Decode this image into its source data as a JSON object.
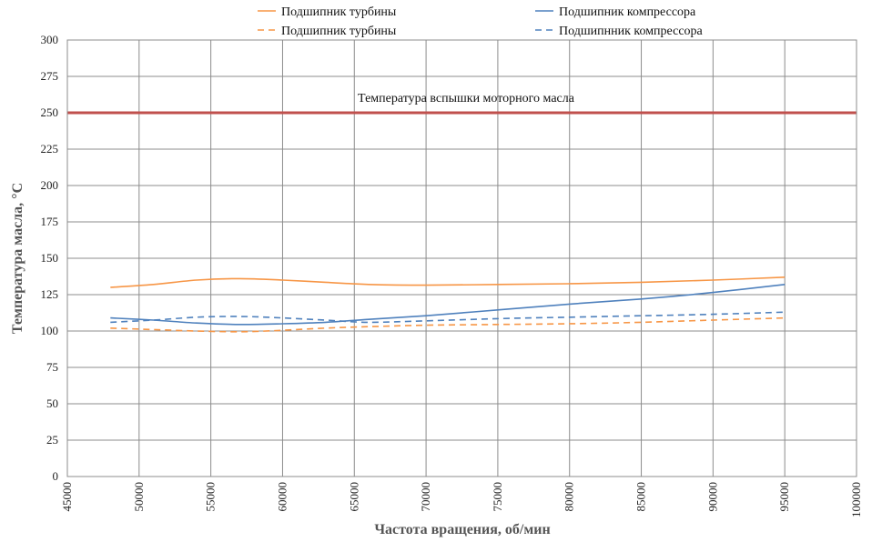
{
  "chart_data": {
    "type": "line",
    "title": "",
    "xlabel": "Частота вращения,  об/мин",
    "ylabel": "Температура  масла, °С",
    "xlim": [
      45000,
      100000
    ],
    "ylim": [
      0,
      300
    ],
    "x_ticks": [
      45000,
      50000,
      55000,
      60000,
      65000,
      70000,
      75000,
      80000,
      85000,
      90000,
      95000,
      100000
    ],
    "x_tick_labels": [
      "45000",
      "50000",
      "55000",
      "60000",
      "65000",
      "70000",
      "75000",
      "80000",
      "85000",
      "90000",
      "95000",
      "100000"
    ],
    "y_ticks": [
      0,
      25,
      50,
      75,
      100,
      125,
      150,
      175,
      200,
      225,
      250,
      275,
      300
    ],
    "y_tick_labels": [
      "0",
      "25",
      "50",
      "75",
      "100",
      "125",
      "150",
      "175",
      "200",
      "225",
      "250",
      "275",
      "300"
    ],
    "grid": true,
    "legend_position": "top",
    "reference_line": {
      "y": 250,
      "label": "Температура  вспышки моторного масла",
      "color": "#c0504d"
    },
    "series": [
      {
        "name": "Подшипник турбины",
        "style": "solid",
        "color": "#f79646",
        "x": [
          48000,
          51000,
          54000,
          57000,
          60000,
          63000,
          66000,
          70000,
          75000,
          80000,
          85000,
          90000,
          95000
        ],
        "y": [
          130,
          132,
          135,
          136,
          135,
          133.5,
          132,
          131.5,
          132,
          132.5,
          133.5,
          135,
          137
        ]
      },
      {
        "name": "Подшипник компрессора",
        "style": "solid",
        "color": "#4f81bd",
        "x": [
          48000,
          51000,
          54000,
          57000,
          60000,
          63000,
          66000,
          70000,
          75000,
          80000,
          85000,
          90000,
          95000
        ],
        "y": [
          109,
          107.5,
          105.5,
          104.5,
          105,
          106,
          108,
          110.5,
          114.5,
          118.5,
          122,
          126.5,
          132
        ]
      },
      {
        "name": "Подшипник турбины",
        "style": "dashed",
        "color": "#f79646",
        "x": [
          48000,
          51000,
          54000,
          57000,
          60000,
          63000,
          66000,
          70000,
          75000,
          80000,
          85000,
          90000,
          95000
        ],
        "y": [
          102,
          101,
          100,
          99.5,
          100.5,
          102,
          103,
          104,
          104.5,
          105,
          106,
          107.5,
          109
        ]
      },
      {
        "name": "Подшипнник компрессора",
        "style": "dashed",
        "color": "#4f81bd",
        "x": [
          48000,
          51000,
          54000,
          57000,
          60000,
          63000,
          66000,
          70000,
          75000,
          80000,
          85000,
          90000,
          95000
        ],
        "y": [
          106,
          107.5,
          109.5,
          110,
          109,
          107.5,
          106,
          107,
          108.5,
          109.5,
          110.5,
          111.5,
          113
        ]
      }
    ]
  }
}
